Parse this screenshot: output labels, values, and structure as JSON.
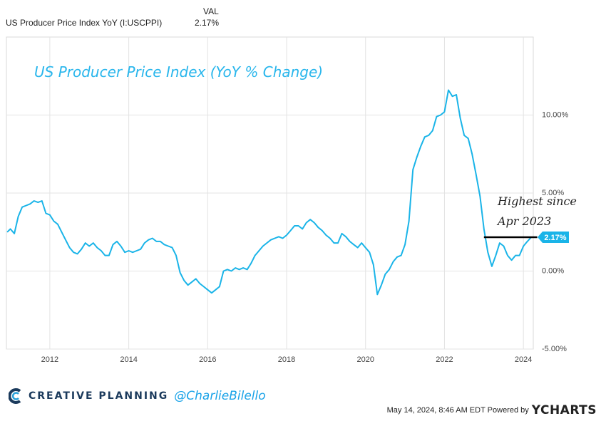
{
  "legend": {
    "header": "VAL",
    "series_name": "US Producer Price Index YoY (I:USCPPI)",
    "series_value": "2.17%"
  },
  "footer": {
    "brand": "CREATIVE PLANNING",
    "handle": "@CharlieBilello",
    "timestamp": "May 14, 2024, 8:46 AM EDT Powered by",
    "logo": "YCHARTS"
  },
  "colors": {
    "line": "#1ab4e8",
    "brand": "#1b3a5c",
    "accent": "#1aa3e8"
  },
  "chart_data": {
    "type": "line",
    "title": "US Producer Price Index (YoY % Change)",
    "annotation": "Highest since Apr 2023",
    "last_value_label": "2.17%",
    "ylim": [
      -5,
      15
    ],
    "xlim": [
      2010.9,
      2024.25
    ],
    "y_ticks": [
      {
        "value": 10,
        "label": "10.00%"
      },
      {
        "value": 5,
        "label": "5.00%"
      },
      {
        "value": 0,
        "label": "0.00%"
      },
      {
        "value": -5,
        "label": "-5.00%"
      }
    ],
    "x_ticks": [
      {
        "value": 2012,
        "label": "2012"
      },
      {
        "value": 2014,
        "label": "2014"
      },
      {
        "value": 2016,
        "label": "2016"
      },
      {
        "value": 2018,
        "label": "2018"
      },
      {
        "value": 2020,
        "label": "2020"
      },
      {
        "value": 2022,
        "label": "2022"
      },
      {
        "value": 2024,
        "label": "2024"
      }
    ],
    "grid": true,
    "series": [
      {
        "points": [
          [
            2010.92,
            2.5
          ],
          [
            2011.0,
            2.7
          ],
          [
            2011.1,
            2.4
          ],
          [
            2011.2,
            3.5
          ],
          [
            2011.3,
            4.1
          ],
          [
            2011.4,
            4.2
          ],
          [
            2011.5,
            4.3
          ],
          [
            2011.6,
            4.5
          ],
          [
            2011.7,
            4.4
          ],
          [
            2011.8,
            4.5
          ],
          [
            2011.9,
            3.7
          ],
          [
            2012.0,
            3.6
          ],
          [
            2012.1,
            3.2
          ],
          [
            2012.2,
            3.0
          ],
          [
            2012.3,
            2.5
          ],
          [
            2012.4,
            2.0
          ],
          [
            2012.5,
            1.5
          ],
          [
            2012.6,
            1.2
          ],
          [
            2012.7,
            1.1
          ],
          [
            2012.8,
            1.4
          ],
          [
            2012.9,
            1.8
          ],
          [
            2013.0,
            1.6
          ],
          [
            2013.1,
            1.8
          ],
          [
            2013.2,
            1.5
          ],
          [
            2013.3,
            1.3
          ],
          [
            2013.4,
            1.0
          ],
          [
            2013.5,
            1.0
          ],
          [
            2013.6,
            1.7
          ],
          [
            2013.7,
            1.9
          ],
          [
            2013.8,
            1.6
          ],
          [
            2013.9,
            1.2
          ],
          [
            2014.0,
            1.3
          ],
          [
            2014.1,
            1.2
          ],
          [
            2014.2,
            1.3
          ],
          [
            2014.3,
            1.4
          ],
          [
            2014.4,
            1.8
          ],
          [
            2014.5,
            2.0
          ],
          [
            2014.6,
            2.1
          ],
          [
            2014.7,
            1.9
          ],
          [
            2014.8,
            1.9
          ],
          [
            2014.9,
            1.7
          ],
          [
            2015.0,
            1.6
          ],
          [
            2015.1,
            1.5
          ],
          [
            2015.2,
            1.0
          ],
          [
            2015.3,
            -0.1
          ],
          [
            2015.4,
            -0.6
          ],
          [
            2015.5,
            -0.9
          ],
          [
            2015.6,
            -0.7
          ],
          [
            2015.7,
            -0.5
          ],
          [
            2015.8,
            -0.8
          ],
          [
            2015.9,
            -1.0
          ],
          [
            2016.0,
            -1.2
          ],
          [
            2016.1,
            -1.4
          ],
          [
            2016.2,
            -1.2
          ],
          [
            2016.3,
            -1.0
          ],
          [
            2016.4,
            0.0
          ],
          [
            2016.5,
            0.1
          ],
          [
            2016.6,
            0.0
          ],
          [
            2016.7,
            0.2
          ],
          [
            2016.8,
            0.1
          ],
          [
            2016.9,
            0.2
          ],
          [
            2017.0,
            0.1
          ],
          [
            2017.1,
            0.5
          ],
          [
            2017.2,
            1.0
          ],
          [
            2017.3,
            1.3
          ],
          [
            2017.4,
            1.6
          ],
          [
            2017.5,
            1.8
          ],
          [
            2017.6,
            2.0
          ],
          [
            2017.7,
            2.1
          ],
          [
            2017.8,
            2.2
          ],
          [
            2017.9,
            2.1
          ],
          [
            2018.0,
            2.3
          ],
          [
            2018.1,
            2.6
          ],
          [
            2018.2,
            2.9
          ],
          [
            2018.3,
            2.9
          ],
          [
            2018.4,
            2.7
          ],
          [
            2018.5,
            3.1
          ],
          [
            2018.6,
            3.3
          ],
          [
            2018.7,
            3.1
          ],
          [
            2018.8,
            2.8
          ],
          [
            2018.9,
            2.6
          ],
          [
            2019.0,
            2.3
          ],
          [
            2019.1,
            2.1
          ],
          [
            2019.2,
            1.8
          ],
          [
            2019.3,
            1.8
          ],
          [
            2019.4,
            2.4
          ],
          [
            2019.5,
            2.2
          ],
          [
            2019.6,
            1.9
          ],
          [
            2019.7,
            1.7
          ],
          [
            2019.8,
            1.5
          ],
          [
            2019.9,
            1.8
          ],
          [
            2020.0,
            1.5
          ],
          [
            2020.1,
            1.2
          ],
          [
            2020.2,
            0.4
          ],
          [
            2020.3,
            -1.5
          ],
          [
            2020.4,
            -0.9
          ],
          [
            2020.5,
            -0.2
          ],
          [
            2020.6,
            0.1
          ],
          [
            2020.7,
            0.6
          ],
          [
            2020.8,
            0.9
          ],
          [
            2020.9,
            1.0
          ],
          [
            2021.0,
            1.7
          ],
          [
            2021.1,
            3.2
          ],
          [
            2021.2,
            6.5
          ],
          [
            2021.3,
            7.3
          ],
          [
            2021.4,
            8.0
          ],
          [
            2021.5,
            8.6
          ],
          [
            2021.6,
            8.7
          ],
          [
            2021.7,
            9.0
          ],
          [
            2021.8,
            9.9
          ],
          [
            2021.9,
            10.0
          ],
          [
            2022.0,
            10.2
          ],
          [
            2022.1,
            11.6
          ],
          [
            2022.2,
            11.2
          ],
          [
            2022.3,
            11.3
          ],
          [
            2022.4,
            9.8
          ],
          [
            2022.5,
            8.7
          ],
          [
            2022.6,
            8.5
          ],
          [
            2022.7,
            7.5
          ],
          [
            2022.8,
            6.2
          ],
          [
            2022.9,
            4.8
          ],
          [
            2023.0,
            2.7
          ],
          [
            2023.1,
            1.2
          ],
          [
            2023.2,
            0.3
          ],
          [
            2023.3,
            1.0
          ],
          [
            2023.4,
            1.8
          ],
          [
            2023.5,
            1.6
          ],
          [
            2023.6,
            1.0
          ],
          [
            2023.7,
            0.7
          ],
          [
            2023.8,
            1.0
          ],
          [
            2023.9,
            1.0
          ],
          [
            2024.0,
            1.6
          ],
          [
            2024.1,
            1.9
          ],
          [
            2024.2,
            2.17
          ]
        ]
      }
    ]
  }
}
